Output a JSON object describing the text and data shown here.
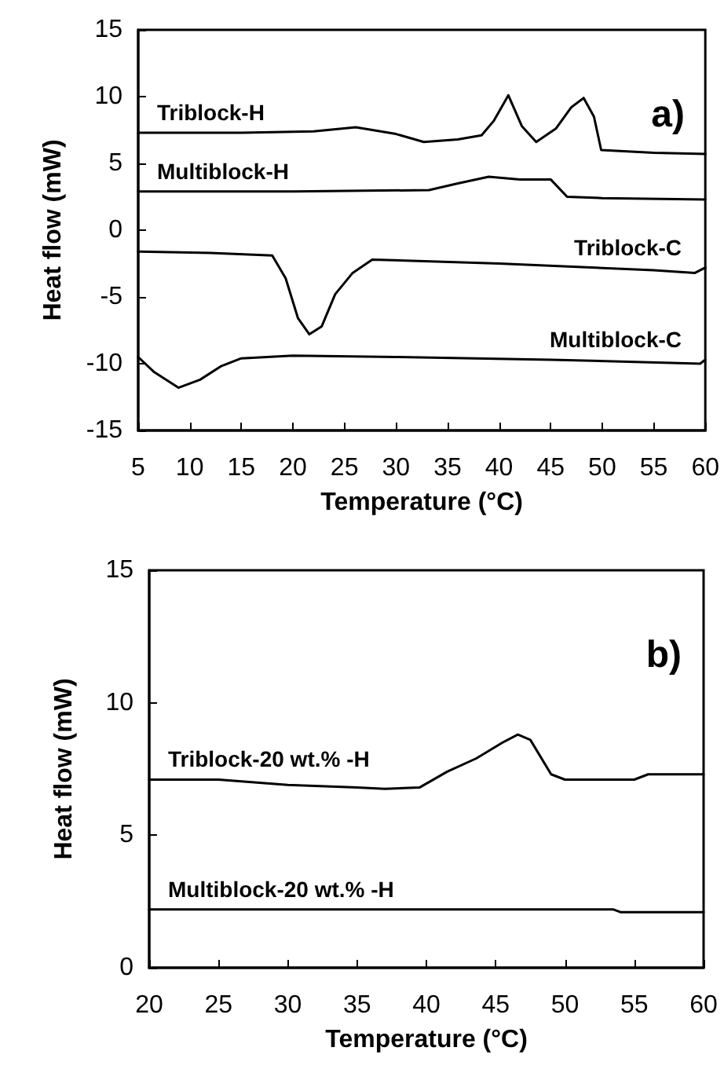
{
  "chart_data": [
    {
      "type": "line",
      "xlabel": "Temperature (°C)",
      "ylabel": "Heat flow (mW)",
      "annotations": [
        "a)"
      ],
      "xlim": [
        5,
        60
      ],
      "ylim": [
        -15,
        15
      ],
      "xticks": [
        5,
        10,
        15,
        20,
        25,
        30,
        35,
        40,
        45,
        50,
        55,
        60
      ],
      "yticks": [
        -15,
        -10,
        -5,
        0,
        5,
        10,
        15
      ],
      "grid": false,
      "legend": false,
      "marker": "none",
      "line_style": "solid",
      "series": [
        {
          "name": "Triblock-H",
          "color": "#000000",
          "x": [
            5,
            15,
            22,
            26.1,
            30,
            32.7,
            36,
            38.3,
            39.5,
            40.9,
            42.2,
            43.6,
            45.5,
            47,
            48.2,
            49.2,
            49.9,
            55,
            60
          ],
          "values": [
            7.3,
            7.3,
            7.4,
            7.7,
            7.2,
            6.6,
            6.8,
            7.1,
            8.2,
            10.1,
            7.8,
            6.6,
            7.6,
            9.2,
            9.9,
            8.5,
            6.0,
            5.8,
            5.7
          ]
        },
        {
          "name": "Multiblock-H",
          "color": "#000000",
          "x": [
            5,
            20,
            33.2,
            36,
            39,
            42,
            45,
            46.6,
            50,
            60
          ],
          "values": [
            2.9,
            2.9,
            3.0,
            3.5,
            4.0,
            3.8,
            3.8,
            2.5,
            2.4,
            2.3
          ]
        },
        {
          "name": "Triblock-C",
          "color": "#000000",
          "x": [
            5,
            12,
            18,
            19.3,
            20.5,
            21.6,
            22.8,
            24.1,
            25.8,
            27.7,
            40,
            55,
            59,
            60
          ],
          "values": [
            -1.6,
            -1.7,
            -1.9,
            -3.6,
            -6.6,
            -7.8,
            -7.2,
            -4.8,
            -3.2,
            -2.2,
            -2.5,
            -3.0,
            -3.2,
            -2.8
          ]
        },
        {
          "name": "Multiblock-C",
          "color": "#000000",
          "x": [
            5,
            6.5,
            8.9,
            11,
            13,
            15,
            20,
            30,
            45,
            59.5,
            60
          ],
          "values": [
            -9.5,
            -10.6,
            -11.8,
            -11.2,
            -10.2,
            -9.6,
            -9.4,
            -9.5,
            -9.7,
            -10.0,
            -9.7
          ]
        }
      ]
    },
    {
      "type": "line",
      "xlabel": "Temperature (°C)",
      "ylabel": "Heat flow (mW)",
      "annotations": [
        "b)"
      ],
      "xlim": [
        20,
        60
      ],
      "ylim": [
        0,
        15
      ],
      "xticks": [
        20,
        25,
        30,
        35,
        40,
        45,
        50,
        55,
        60
      ],
      "yticks": [
        0,
        5,
        10,
        15
      ],
      "grid": false,
      "legend": false,
      "marker": "none",
      "line_style": "solid",
      "series": [
        {
          "name": "Triblock-20 wt.% -H",
          "color": "#000000",
          "x": [
            20,
            25,
            30,
            35,
            37,
            39.5,
            41.5,
            43.6,
            45.5,
            46.6,
            47.5,
            49,
            50,
            55,
            56,
            60
          ],
          "values": [
            7.1,
            7.1,
            6.9,
            6.8,
            6.75,
            6.8,
            7.4,
            7.9,
            8.5,
            8.8,
            8.6,
            7.3,
            7.1,
            7.1,
            7.3,
            7.3
          ]
        },
        {
          "name": "Multiblock-20 wt.% -H",
          "color": "#000000",
          "x": [
            20,
            53.5,
            54,
            60
          ],
          "values": [
            2.2,
            2.2,
            2.1,
            2.1
          ]
        }
      ]
    }
  ]
}
